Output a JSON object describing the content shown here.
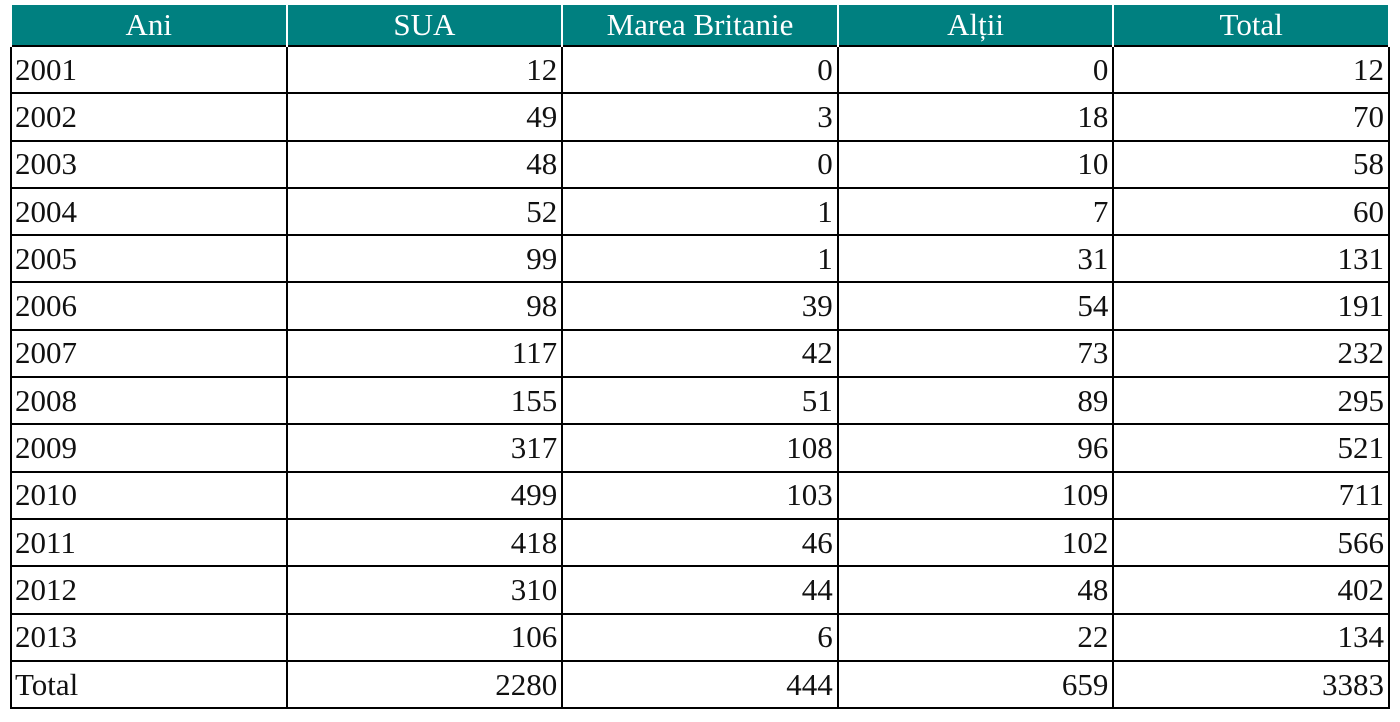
{
  "table": {
    "header": [
      "Ani",
      "SUA",
      "Marea Britanie",
      "Alții",
      "Total"
    ],
    "rows": [
      [
        "2001",
        12,
        0,
        0,
        12
      ],
      [
        "2002",
        49,
        3,
        18,
        70
      ],
      [
        "2003",
        48,
        0,
        10,
        58
      ],
      [
        "2004",
        52,
        1,
        7,
        60
      ],
      [
        "2005",
        99,
        1,
        31,
        131
      ],
      [
        "2006",
        98,
        39,
        54,
        191
      ],
      [
        "2007",
        117,
        42,
        73,
        232
      ],
      [
        "2008",
        155,
        51,
        89,
        295
      ],
      [
        "2009",
        317,
        108,
        96,
        521
      ],
      [
        "2010",
        499,
        103,
        109,
        711
      ],
      [
        "2011",
        418,
        46,
        102,
        566
      ],
      [
        "2012",
        310,
        44,
        48,
        402
      ],
      [
        "2013",
        106,
        6,
        22,
        134
      ],
      [
        "Total",
        2280,
        444,
        659,
        3383
      ]
    ]
  }
}
